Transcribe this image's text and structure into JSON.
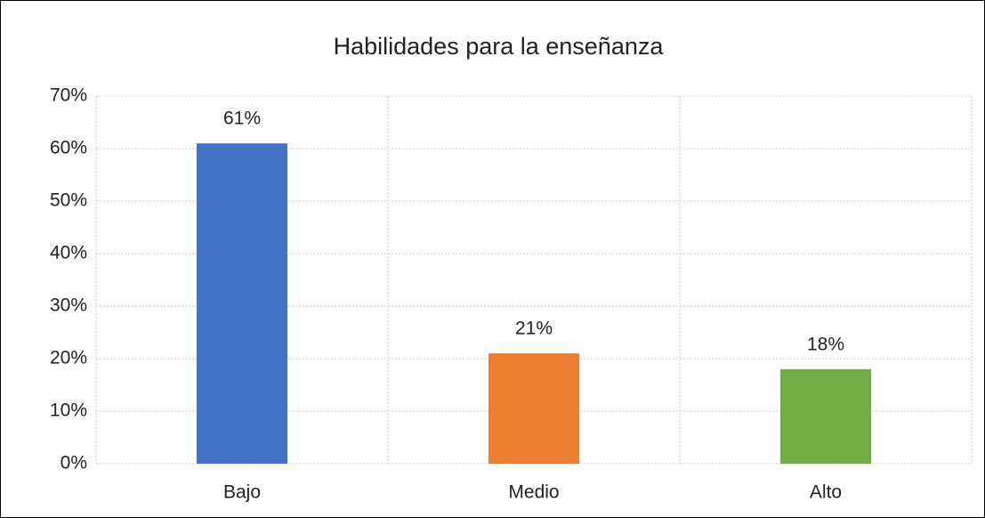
{
  "chart_data": {
    "type": "bar",
    "title": "Habilidades para la enseñanza",
    "categories": [
      "Bajo",
      "Medio",
      "Alto"
    ],
    "values": [
      61,
      21,
      18
    ],
    "value_labels": [
      "61%",
      "21%",
      "18%"
    ],
    "colors": [
      "#4472c4",
      "#ed7d31",
      "#70ad47"
    ],
    "ylim": [
      0,
      70
    ],
    "yticks": [
      {
        "value": 0,
        "label": "0%"
      },
      {
        "value": 10,
        "label": "10%"
      },
      {
        "value": 20,
        "label": "20%"
      },
      {
        "value": 30,
        "label": "30%"
      },
      {
        "value": 40,
        "label": "40%"
      },
      {
        "value": 50,
        "label": "50%"
      },
      {
        "value": 60,
        "label": "60%"
      },
      {
        "value": 70,
        "label": "70%"
      }
    ],
    "grid": true
  }
}
